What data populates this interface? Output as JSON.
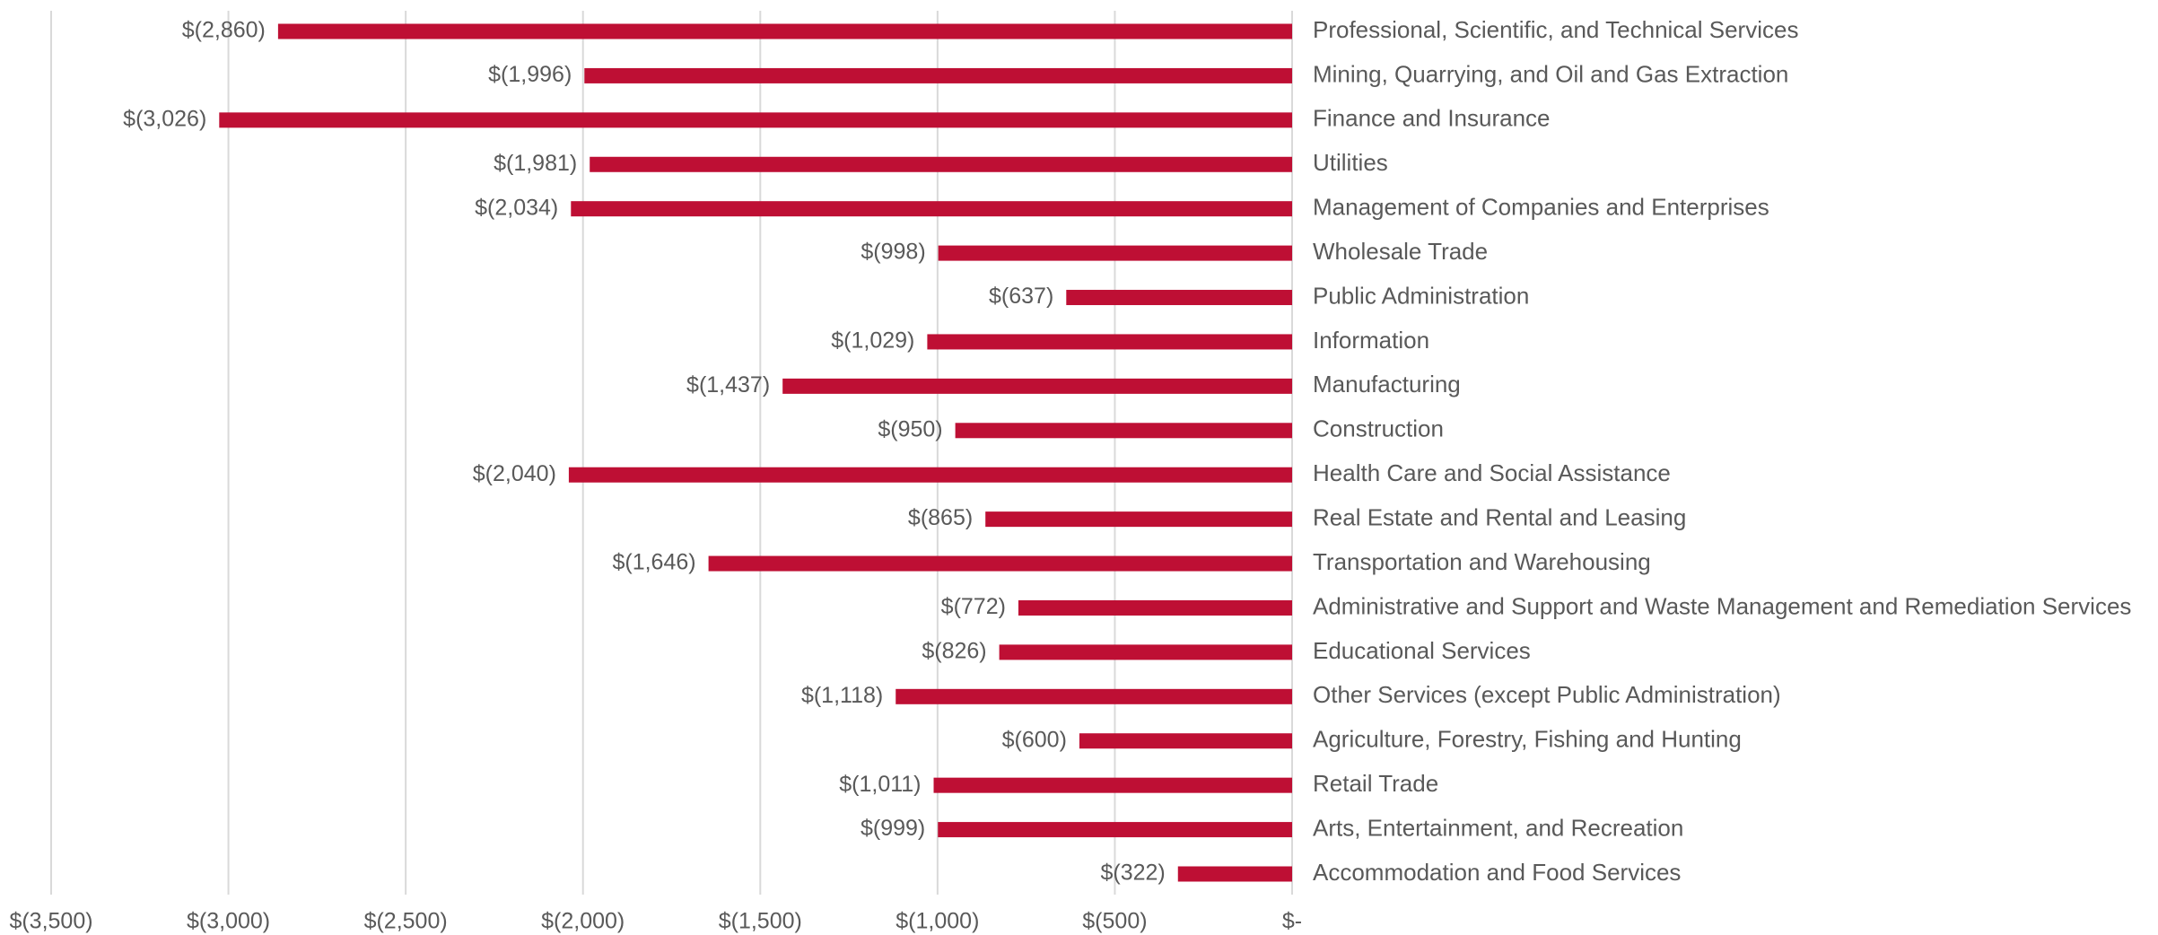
{
  "chart_data": {
    "type": "bar",
    "orientation": "horizontal",
    "categories": [
      "Professional, Scientific, and Technical Services",
      "Mining, Quarrying, and Oil and Gas Extraction",
      "Finance and Insurance",
      "Utilities",
      "Management of Companies and Enterprises",
      "Wholesale Trade",
      "Public Administration",
      "Information",
      "Manufacturing",
      "Construction",
      "Health Care and Social Assistance",
      "Real Estate and Rental and Leasing",
      "Transportation and Warehousing",
      "Administrative and Support and Waste Management and Remediation Services",
      "Educational Services",
      "Other Services (except Public Administration)",
      "Agriculture, Forestry, Fishing and Hunting",
      "Retail Trade",
      "Arts, Entertainment, and Recreation",
      "Accommodation and Food Services"
    ],
    "values": [
      -2860,
      -1996,
      -3026,
      -1981,
      -2034,
      -998,
      -637,
      -1029,
      -1437,
      -950,
      -2040,
      -865,
      -1646,
      -772,
      -826,
      -1118,
      -600,
      -1011,
      -999,
      -322
    ],
    "value_labels": [
      "$(2,860)",
      "$(1,996)",
      "$(3,026)",
      "$(1,981)",
      "$(2,034)",
      "$(998)",
      "$(637)",
      "$(1,029)",
      "$(1,437)",
      "$(950)",
      "$(2,040)",
      "$(865)",
      "$(1,646)",
      "$(772)",
      "$(826)",
      "$(1,118)",
      "$(600)",
      "$(1,011)",
      "$(999)",
      "$(322)"
    ],
    "color": "#be0f34",
    "xlim": [
      -3500,
      0
    ],
    "xticks": [
      {
        "value": -3500,
        "label": "$(3,500)"
      },
      {
        "value": -3000,
        "label": "$(3,000)"
      },
      {
        "value": -2500,
        "label": "$(2,500)"
      },
      {
        "value": -2000,
        "label": "$(2,000)"
      },
      {
        "value": -1500,
        "label": "$(1,500)"
      },
      {
        "value": -1000,
        "label": "$(1,000)"
      },
      {
        "value": -500,
        "label": "$(500)"
      },
      {
        "value": 0,
        "label": "$-"
      }
    ],
    "grid": true
  }
}
